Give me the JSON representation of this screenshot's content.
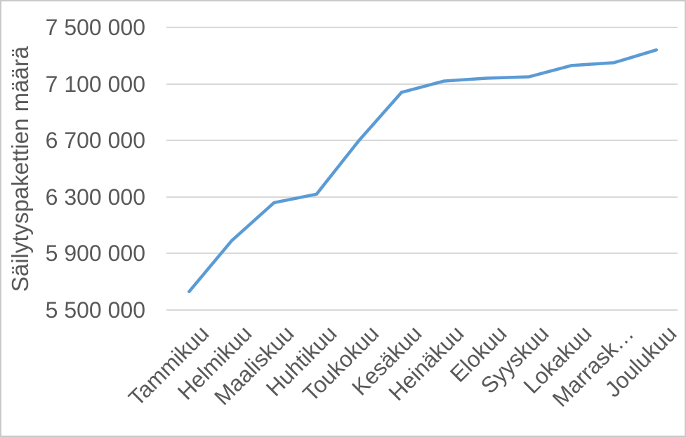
{
  "page": {
    "background": "#ffffff",
    "border_color": "#c9c9c9"
  },
  "chart_data": {
    "type": "line",
    "title": "",
    "xlabel": "",
    "ylabel": "Säilytyspakettien määrä",
    "categories": [
      "Tammikuu",
      "Helmikuu",
      "Maaliskuu",
      "Huhtikuu",
      "Toukokuu",
      "Kesäkuu",
      "Heinäkuu",
      "Elokuu",
      "Syyskuu",
      "Lokakuu",
      "Marraskuu",
      "Joulukuu"
    ],
    "x_tick_labels_displayed": [
      "Tammikuu",
      "Helmikuu",
      "Maaliskuu",
      "Huhtikuu",
      "Toukokuu",
      "Kesäkuu",
      "Heinäkuu",
      "Elokuu",
      "Syyskuu",
      "Lokakuu",
      "Marrask…",
      "Joulukuu"
    ],
    "series": [
      {
        "name": "Säilytyspakettien määrä",
        "color": "#5B9BD5",
        "values": [
          5630000,
          5990000,
          6260000,
          6320000,
          6700000,
          7040000,
          7120000,
          7140000,
          7150000,
          7230000,
          7250000,
          7340000
        ]
      }
    ],
    "ylim": [
      5500000,
      7500000
    ],
    "y_tick_step": 400000,
    "y_tick_labels": [
      "5 500 000",
      "5 900 000",
      "6 300 000",
      "6 700 000",
      "7 100 000",
      "7 500 000"
    ],
    "grid": "horizontal",
    "legend": "none",
    "colors": {
      "axis_text": "#595959",
      "gridline": "#d9d9d9",
      "line": "#5B9BD5",
      "plot_background": "#ffffff"
    }
  }
}
